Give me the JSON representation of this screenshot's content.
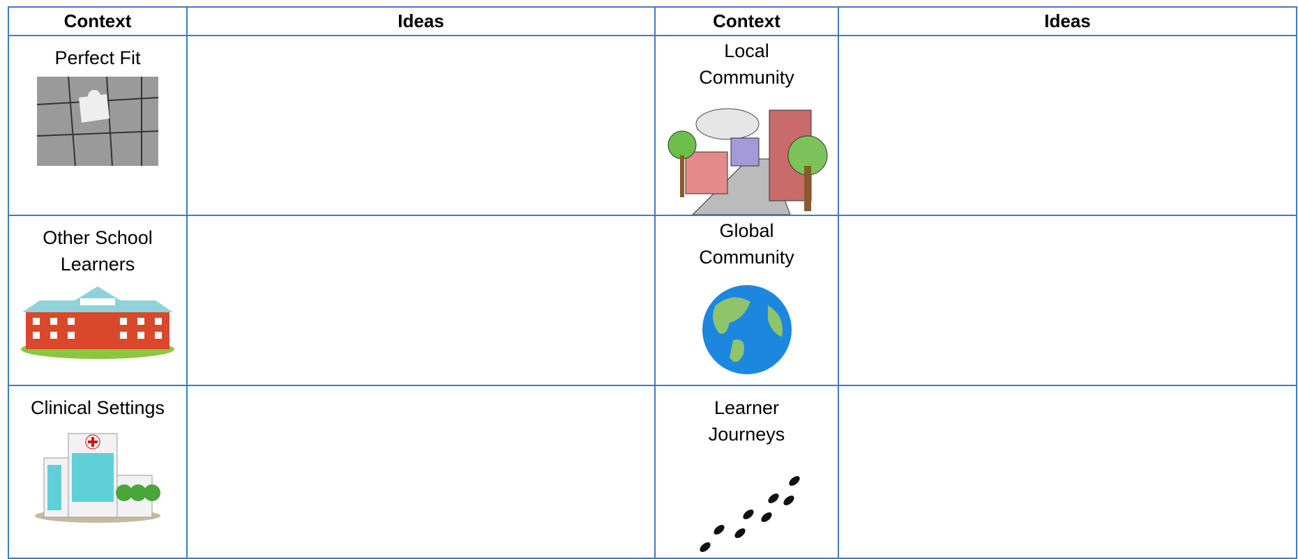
{
  "table": {
    "header": [
      "Context",
      "Ideas",
      "Context",
      "Ideas"
    ],
    "rows": [
      [
        "Perfect Fit",
        "",
        "Local Community",
        ""
      ],
      [
        "Other School Learners",
        "",
        "Global Community",
        ""
      ],
      [
        "Clinical Settings",
        "",
        "Learner Journeys",
        ""
      ]
    ]
  }
}
